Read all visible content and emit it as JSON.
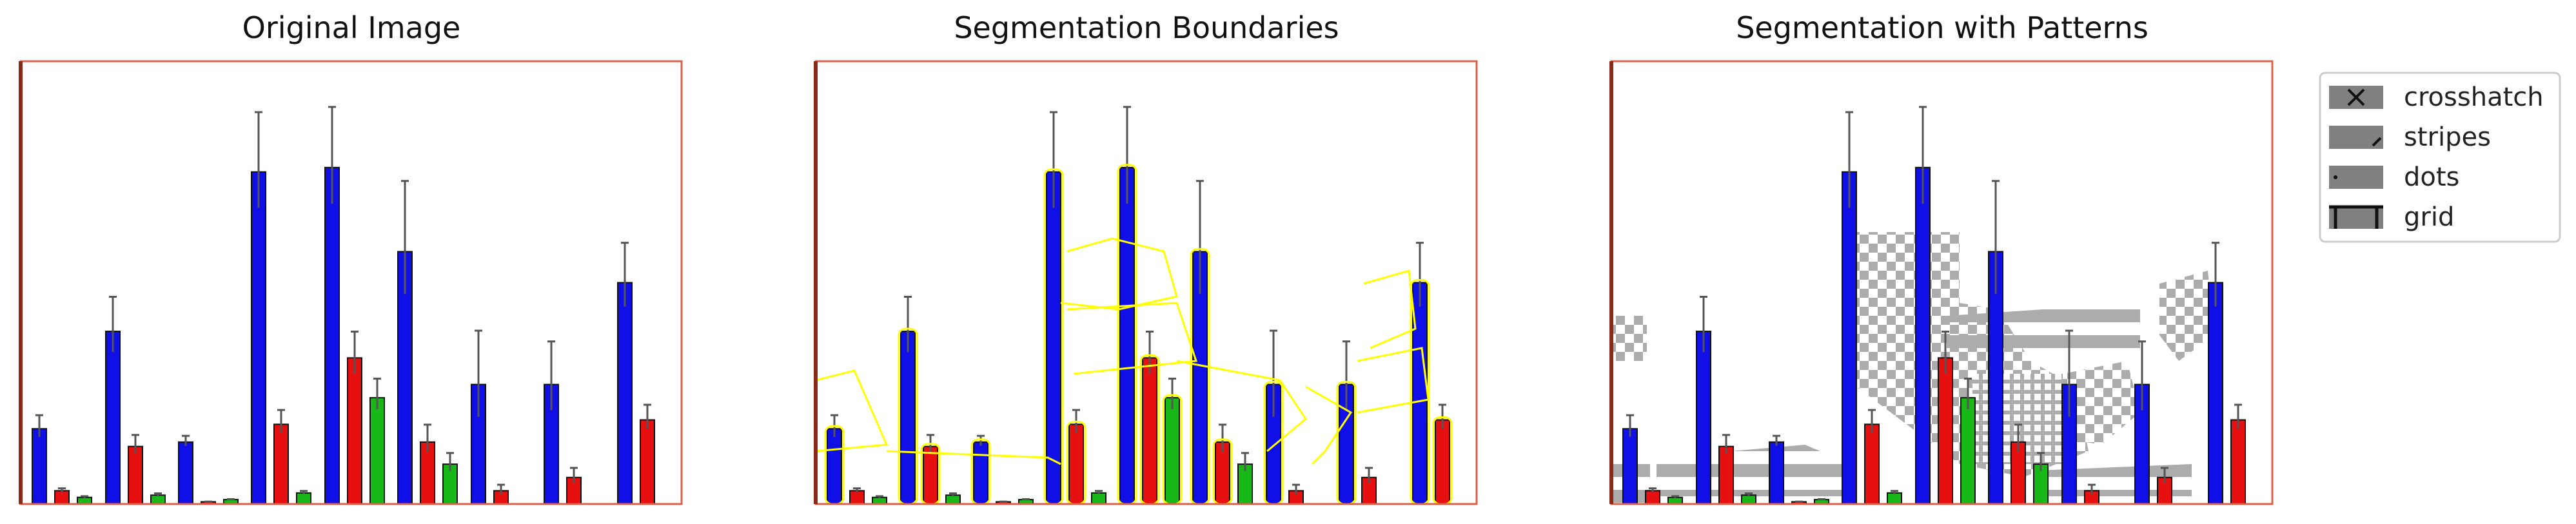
{
  "panels": {
    "original_title": "Original Image",
    "boundaries_title": "Segmentation Boundaries",
    "patterns_title": "Segmentation with Patterns"
  },
  "legend": {
    "items": [
      {
        "label": "crosshatch",
        "icon": "crosshatch-icon"
      },
      {
        "label": "stripes",
        "icon": "stripes-icon"
      },
      {
        "label": "dots",
        "icon": "dots-icon"
      },
      {
        "label": "grid",
        "icon": "grid-icon"
      }
    ]
  },
  "colors": {
    "blue": "#1010e6",
    "red": "#e61010",
    "green": "#18b818",
    "frame": "#d9604a",
    "boundary": "#ffff00",
    "pattern": "#a8a8a8"
  },
  "chart_data": [
    {
      "type": "bar",
      "title": "Original Image",
      "ylim": [
        0,
        100
      ],
      "series": [
        {
          "color": "blue",
          "values": [
            17,
            39,
            14,
            75,
            76,
            57,
            27,
            27,
            50
          ]
        },
        {
          "color": "red",
          "values": [
            3,
            13,
            0.5,
            18,
            33,
            14,
            3,
            6,
            19
          ]
        },
        {
          "color": "green",
          "values": [
            1.5,
            2,
            1,
            2.5,
            24,
            9,
            0,
            0,
            0
          ]
        }
      ]
    }
  ]
}
